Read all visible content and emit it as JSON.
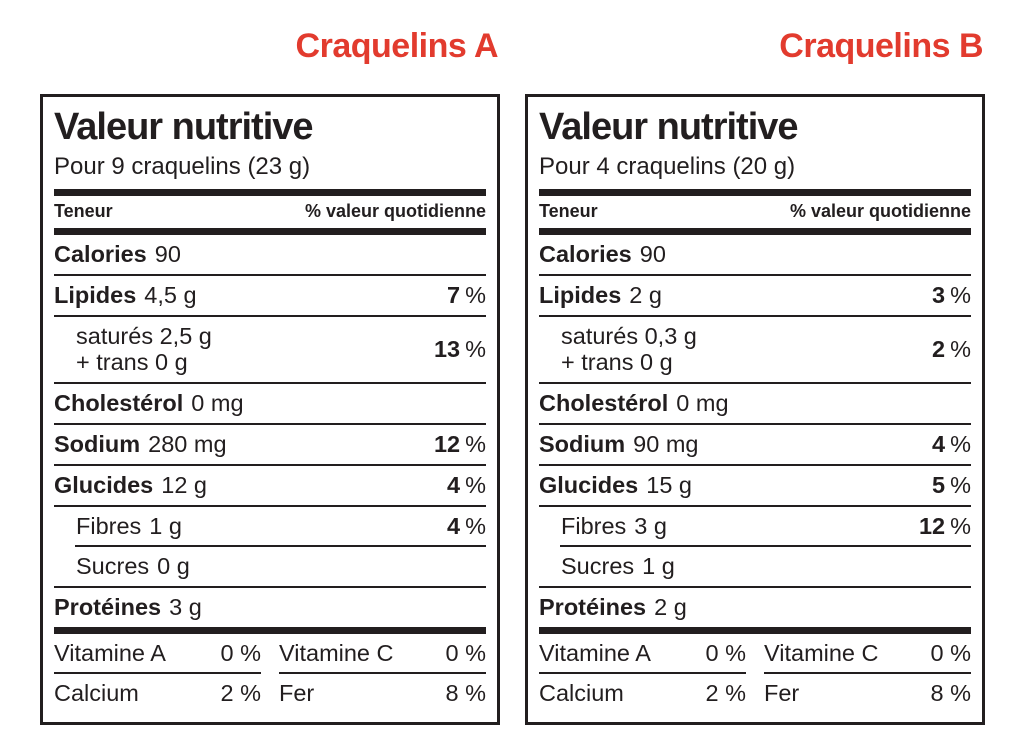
{
  "shared": {
    "percent": "%"
  },
  "colors": {
    "title_red": "#e23b2e",
    "ink": "#221e1f",
    "background": "#ffffff"
  },
  "labels": [
    {
      "product": "Craquelins A",
      "title": "Valeur nutritive",
      "serving": "Pour 9 craquelins (23 g)",
      "header_left": "Teneur",
      "header_right": "% valeur quotidienne",
      "calories": {
        "name": "Calories",
        "value": "90"
      },
      "lipides": {
        "name": "Lipides",
        "value": "4,5 g",
        "dv": "7"
      },
      "satures": {
        "line1": "saturés 2,5 g",
        "line2": "+ trans 0 g",
        "dv": "13"
      },
      "cholesterol": {
        "name": "Cholestérol",
        "value": "0 mg"
      },
      "sodium": {
        "name": "Sodium",
        "value": "280 mg",
        "dv": "12"
      },
      "glucides": {
        "name": "Glucides",
        "value": "12 g",
        "dv": "4"
      },
      "fibres": {
        "name": "Fibres",
        "value": "1 g",
        "dv": "4"
      },
      "sucres": {
        "name": "Sucres",
        "value": "0 g"
      },
      "proteines": {
        "name": "Protéines",
        "value": "3 g"
      },
      "vitamine_a": {
        "name": "Vitamine A",
        "value": "0 %"
      },
      "vitamine_c": {
        "name": "Vitamine C",
        "value": "0 %"
      },
      "calcium": {
        "name": "Calcium",
        "value": "2 %"
      },
      "fer": {
        "name": "Fer",
        "value": "8 %"
      }
    },
    {
      "product": "Craquelins B",
      "title": "Valeur nutritive",
      "serving": "Pour 4 craquelins (20 g)",
      "header_left": "Teneur",
      "header_right": "% valeur quotidienne",
      "calories": {
        "name": "Calories",
        "value": "90"
      },
      "lipides": {
        "name": "Lipides",
        "value": "2 g",
        "dv": "3"
      },
      "satures": {
        "line1": "saturés 0,3 g",
        "line2": "+ trans 0 g",
        "dv": "2"
      },
      "cholesterol": {
        "name": "Cholestérol",
        "value": "0 mg"
      },
      "sodium": {
        "name": "Sodium",
        "value": "90 mg",
        "dv": "4"
      },
      "glucides": {
        "name": "Glucides",
        "value": "15 g",
        "dv": "5"
      },
      "fibres": {
        "name": "Fibres",
        "value": "3 g",
        "dv": "12"
      },
      "sucres": {
        "name": "Sucres",
        "value": "1 g"
      },
      "proteines": {
        "name": "Protéines",
        "value": "2 g"
      },
      "vitamine_a": {
        "name": "Vitamine A",
        "value": "0 %"
      },
      "vitamine_c": {
        "name": "Vitamine C",
        "value": "0 %"
      },
      "calcium": {
        "name": "Calcium",
        "value": "2 %"
      },
      "fer": {
        "name": "Fer",
        "value": "8 %"
      }
    }
  ]
}
